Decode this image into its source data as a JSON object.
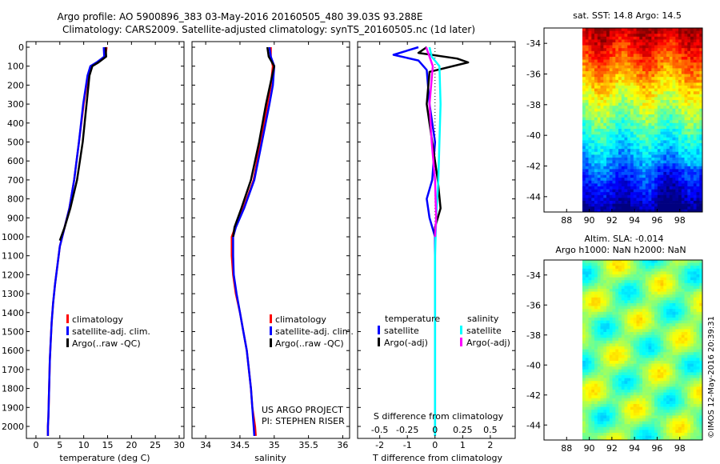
{
  "header": {
    "title_line1": "Argo profile: AO 5900896_383 03-May-2016 20160505_480 39.03S 93.288E",
    "title_line2": "Climatology: CARS2009. Satellite-adjusted climatology: synTS_20160505.nc (1d later)"
  },
  "depth_ticks": [
    "0",
    "100",
    "200",
    "300",
    "400",
    "500",
    "600",
    "700",
    "800",
    "900",
    "1000",
    "1100",
    "1200",
    "1300",
    "1400",
    "1500",
    "1600",
    "1700",
    "1800",
    "1900",
    "2000"
  ],
  "colors": {
    "climatology": "#ff0000",
    "satellite": "#0000ff",
    "argo": "#000000",
    "salinity_satellite": "#00ffff",
    "salinity_argo": "#ff00ff"
  },
  "panels": {
    "temperature": {
      "xlabel": "temperature (deg C)",
      "xticks": [
        "0",
        "5",
        "10",
        "15",
        "20",
        "25",
        "30"
      ],
      "legend": [
        "climatology",
        "satellite-adj. clim.",
        "Argo(..raw -QC)"
      ]
    },
    "salinity": {
      "xlabel": "salinity",
      "xticks": [
        "34",
        "34.5",
        "35",
        "35.5",
        "36"
      ],
      "legend": [
        "climatology",
        "satellite-adj. clim.",
        "Argo(..raw -QC)"
      ],
      "credit1": "US ARGO PROJECT",
      "credit2": "PI: STEPHEN RISER"
    },
    "difference": {
      "xlabel": "T difference from climatology",
      "top_label": "S difference from climatology",
      "xticks": [
        "-2",
        "-1",
        "0",
        "1",
        "2"
      ],
      "s_ticks": [
        "-0.5",
        "-0.25",
        "0",
        "0.25",
        "0.5"
      ],
      "legend_temp_title": "temperature",
      "legend_sal_title": "salinity",
      "legend_temp": [
        "satellite",
        "Argo(-adj)"
      ],
      "legend_sal": [
        "satellite",
        "Argo(-adj)"
      ]
    }
  },
  "maps": {
    "sst_title": "sat. SST: 14.8 Argo: 14.5",
    "sla_title1": "Altim. SLA: -0.014",
    "sla_title2": "Argo h1000: NaN h2000: NaN",
    "yticks": [
      "-34",
      "-36",
      "-38",
      "-40",
      "-42",
      "-44"
    ],
    "xticks": [
      "88",
      "90",
      "92",
      "94",
      "96",
      "98"
    ],
    "stamp": "©IMOS 12-May-2016 20:39:31"
  },
  "chart_data": [
    {
      "type": "line",
      "title": "",
      "xlabel": "temperature (deg C)",
      "ylabel": "",
      "xlim": [
        -2,
        31
      ],
      "ylim": [
        2050,
        0
      ],
      "series": [
        {
          "name": "climatology",
          "x": [
            14.8,
            14.5,
            13.0,
            11.5,
            10.9,
            10.0,
            9.0,
            8.0,
            7.0,
            6.0,
            5.0,
            4.5,
            4.0,
            3.6,
            3.3,
            3.1,
            2.9,
            2.8,
            2.7,
            2.6,
            2.5,
            2.5
          ],
          "y": [
            0,
            50,
            80,
            100,
            150,
            300,
            500,
            700,
            850,
            950,
            1050,
            1150,
            1250,
            1350,
            1450,
            1550,
            1650,
            1750,
            1850,
            1950,
            2000,
            2050
          ]
        },
        {
          "name": "satellite-adj. clim.",
          "x": [
            14.2,
            14.3,
            12.7,
            11.4,
            10.8,
            9.9,
            9.0,
            8.0,
            7.0,
            6.0,
            5.0,
            4.5,
            4.0,
            3.6,
            3.3,
            3.1,
            2.9,
            2.8,
            2.7,
            2.6,
            2.5,
            2.5
          ],
          "y": [
            0,
            50,
            80,
            100,
            150,
            300,
            500,
            700,
            850,
            950,
            1050,
            1150,
            1250,
            1350,
            1450,
            1550,
            1650,
            1750,
            1850,
            1950,
            2000,
            2050
          ]
        },
        {
          "name": "Argo(..raw -QC)",
          "x": [
            14.6,
            14.7,
            13.1,
            11.8,
            11.2,
            10.6,
            9.8,
            8.6,
            7.2,
            6.0,
            5.0
          ],
          "y": [
            0,
            50,
            80,
            100,
            150,
            300,
            500,
            700,
            850,
            950,
            1020
          ]
        }
      ]
    },
    {
      "type": "line",
      "title": "",
      "xlabel": "salinity",
      "ylabel": "",
      "xlim": [
        33.8,
        36.1
      ],
      "ylim": [
        2050,
        0
      ],
      "series": [
        {
          "name": "climatology",
          "x": [
            34.95,
            34.95,
            34.98,
            34.95,
            34.9,
            34.8,
            34.7,
            34.55,
            34.43,
            34.38,
            34.38,
            34.4,
            34.44,
            34.5,
            34.55,
            34.6,
            34.63,
            34.66,
            34.68,
            34.7,
            34.72,
            34.73
          ],
          "y": [
            0,
            50,
            100,
            200,
            300,
            500,
            700,
            850,
            950,
            1000,
            1100,
            1200,
            1300,
            1400,
            1500,
            1600,
            1700,
            1800,
            1900,
            1950,
            2000,
            2050
          ]
        },
        {
          "name": "satellite-adj. clim.",
          "x": [
            34.93,
            34.95,
            35.0,
            34.98,
            34.93,
            34.82,
            34.71,
            34.56,
            34.44,
            34.4,
            34.4,
            34.41,
            34.45,
            34.5,
            34.55,
            34.6,
            34.63,
            34.66,
            34.68,
            34.69,
            34.7,
            34.71
          ],
          "y": [
            0,
            50,
            100,
            200,
            300,
            500,
            700,
            850,
            950,
            1000,
            1100,
            1200,
            1300,
            1400,
            1500,
            1600,
            1700,
            1800,
            1900,
            1950,
            2000,
            2050
          ]
        },
        {
          "name": "Argo(..raw -QC)",
          "x": [
            34.9,
            34.92,
            35.0,
            34.94,
            34.88,
            34.78,
            34.66,
            34.52,
            34.42,
            34.4
          ],
          "y": [
            0,
            50,
            100,
            200,
            300,
            500,
            700,
            850,
            950,
            1000
          ]
        }
      ]
    },
    {
      "type": "line",
      "title": "",
      "xlabel": "T difference from climatology",
      "ylabel": "",
      "xlim": [
        -2.8,
        2.9
      ],
      "ylim": [
        2050,
        0
      ],
      "series": [
        {
          "name": "temperature satellite",
          "x": [
            -0.6,
            -1.5,
            -0.6,
            -0.3,
            -0.2,
            0.0,
            -0.1,
            -0.3,
            -0.2,
            0.0,
            0.0,
            0.0,
            0.0,
            0.0,
            0.0,
            0.0
          ],
          "y": [
            0,
            40,
            70,
            120,
            300,
            500,
            700,
            800,
            900,
            1000,
            1100,
            1300,
            1500,
            1700,
            1900,
            2050
          ]
        },
        {
          "name": "temperature Argo(-adj)",
          "x": [
            -0.3,
            -0.6,
            0.8,
            1.2,
            -0.2,
            -0.3,
            -0.1,
            0.1,
            0.2,
            0.0,
            0.0
          ],
          "y": [
            0,
            30,
            60,
            80,
            130,
            300,
            500,
            700,
            850,
            950,
            1000
          ]
        },
        {
          "name": "salinity satellite",
          "x": [
            -0.05,
            -0.03,
            0.04,
            0.05,
            0.04,
            0.03,
            0.01,
            0.0,
            0.0,
            0.0,
            0.0,
            0.0
          ],
          "y": [
            0,
            50,
            100,
            300,
            500,
            700,
            900,
            1100,
            1400,
            1700,
            1900,
            2050
          ]
        },
        {
          "name": "salinity Argo(-adj)",
          "x": [
            -0.08,
            -0.05,
            -0.02,
            -0.05,
            -0.03,
            0.0,
            0.01,
            0.0
          ],
          "y": [
            0,
            50,
            100,
            300,
            500,
            700,
            900,
            1000
          ]
        }
      ]
    }
  ]
}
